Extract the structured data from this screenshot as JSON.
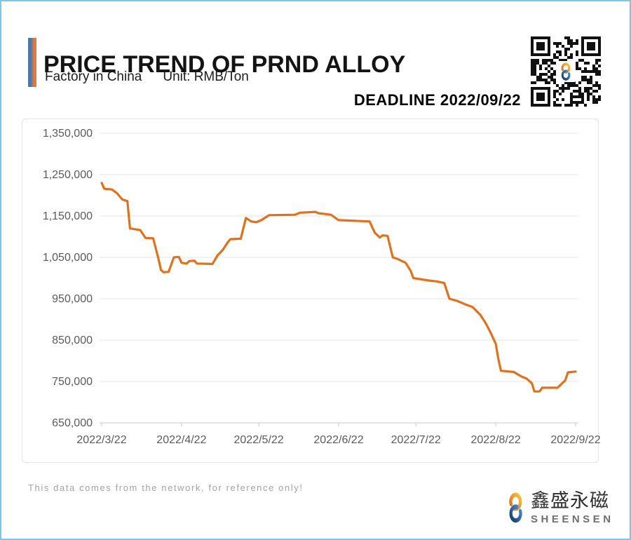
{
  "header": {
    "title": "PRICE TREND OF PRND ALLOY",
    "subtitle_left": "Factory in China",
    "subtitle_right": "Unit: RMB/Ton",
    "deadline": "DEADLINE 2022/09/22",
    "accent_blue": "#4d76ad",
    "accent_orange": "#de7a40"
  },
  "qr": {
    "name": "qr-code",
    "center_mark": "S"
  },
  "chart_data": {
    "type": "line",
    "title": "PRICE TREND OF PRND ALLOY",
    "unit": "RMB/Ton",
    "line_color": "#E2711D",
    "grid": true,
    "ylim": [
      650000,
      1350000
    ],
    "y_ticks": [
      {
        "label": "1,350,000",
        "value": 1350000
      },
      {
        "label": "1,250,000",
        "value": 1250000
      },
      {
        "label": "1,150,000",
        "value": 1150000
      },
      {
        "label": "1,050,000",
        "value": 1050000
      },
      {
        "label": "950,000",
        "value": 950000
      },
      {
        "label": "850,000",
        "value": 850000
      },
      {
        "label": "750,000",
        "value": 750000
      },
      {
        "label": "650,000",
        "value": 650000
      }
    ],
    "x_ticks": [
      {
        "label": "2022/3/22",
        "day": 0
      },
      {
        "label": "2022/4/22",
        "day": 31
      },
      {
        "label": "2022/5/22",
        "day": 61
      },
      {
        "label": "2022/6/22",
        "day": 92
      },
      {
        "label": "2022/7/22",
        "day": 122
      },
      {
        "label": "2022/8/22",
        "day": 153
      },
      {
        "label": "2022/9/22",
        "day": 184
      }
    ],
    "x_range_days": [
      0,
      184
    ],
    "points_day_value": [
      [
        0,
        1230000
      ],
      [
        1,
        1216000
      ],
      [
        4,
        1214000
      ],
      [
        6,
        1205000
      ],
      [
        8,
        1190000
      ],
      [
        10,
        1186000
      ],
      [
        11,
        1120000
      ],
      [
        15,
        1116000
      ],
      [
        17,
        1097000
      ],
      [
        20,
        1096000
      ],
      [
        22,
        1048000
      ],
      [
        23,
        1020000
      ],
      [
        24,
        1014000
      ],
      [
        26,
        1015000
      ],
      [
        28,
        1050000
      ],
      [
        30,
        1051000
      ],
      [
        31,
        1037000
      ],
      [
        33,
        1035000
      ],
      [
        34,
        1041000
      ],
      [
        36,
        1042000
      ],
      [
        37,
        1035000
      ],
      [
        43,
        1034000
      ],
      [
        45,
        1055000
      ],
      [
        47,
        1068000
      ],
      [
        49,
        1087000
      ],
      [
        50,
        1094000
      ],
      [
        54,
        1095000
      ],
      [
        56,
        1145000
      ],
      [
        58,
        1137000
      ],
      [
        60,
        1135000
      ],
      [
        62,
        1140000
      ],
      [
        65,
        1152000
      ],
      [
        75,
        1153000
      ],
      [
        77,
        1158000
      ],
      [
        83,
        1160000
      ],
      [
        84,
        1157000
      ],
      [
        89,
        1153000
      ],
      [
        92,
        1140000
      ],
      [
        104,
        1137000
      ],
      [
        106,
        1110000
      ],
      [
        108,
        1098000
      ],
      [
        109,
        1103000
      ],
      [
        111,
        1102000
      ],
      [
        113,
        1050000
      ],
      [
        115,
        1046000
      ],
      [
        118,
        1037000
      ],
      [
        120,
        1017000
      ],
      [
        121,
        1000000
      ],
      [
        127,
        994000
      ],
      [
        130,
        992000
      ],
      [
        133,
        988000
      ],
      [
        135,
        950000
      ],
      [
        138,
        945000
      ],
      [
        141,
        937000
      ],
      [
        144,
        930000
      ],
      [
        147,
        911000
      ],
      [
        149,
        892000
      ],
      [
        151,
        868000
      ],
      [
        153,
        841000
      ],
      [
        154,
        804000
      ],
      [
        155,
        776000
      ],
      [
        160,
        773000
      ],
      [
        163,
        762000
      ],
      [
        165,
        757000
      ],
      [
        167,
        746000
      ],
      [
        168,
        726000
      ],
      [
        170,
        726000
      ],
      [
        171,
        735000
      ],
      [
        177,
        735000
      ],
      [
        178,
        741000
      ],
      [
        180,
        753000
      ],
      [
        181,
        772000
      ],
      [
        184,
        774000
      ]
    ]
  },
  "footer": {
    "disclaimer": "This data comes from the network, for reference only!"
  },
  "logo": {
    "cn": "鑫盛永磁",
    "en": "SHEENSEN",
    "orange": "#F2A03D",
    "blue": "#1F5FA8"
  }
}
